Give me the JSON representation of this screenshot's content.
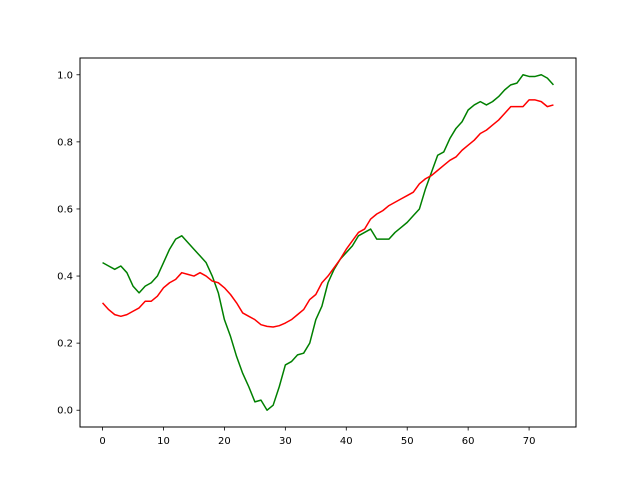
{
  "chart_data": {
    "type": "line",
    "title": "",
    "xlabel": "",
    "ylabel": "",
    "xlim": [
      -3.7,
      77.7
    ],
    "ylim": [
      -0.05,
      1.05
    ],
    "xticks": [
      0,
      10,
      20,
      30,
      40,
      50,
      60,
      70
    ],
    "yticks": [
      0.0,
      0.2,
      0.4,
      0.6,
      0.8,
      1.0
    ],
    "xtick_labels": [
      "0",
      "10",
      "20",
      "30",
      "40",
      "50",
      "60",
      "70"
    ],
    "ytick_labels": [
      "0.0",
      "0.2",
      "0.4",
      "0.6",
      "0.8",
      "1.0"
    ],
    "grid": false,
    "legend": "none",
    "x": [
      0,
      1,
      2,
      3,
      4,
      5,
      6,
      7,
      8,
      9,
      10,
      11,
      12,
      13,
      14,
      15,
      16,
      17,
      18,
      19,
      20,
      21,
      22,
      23,
      24,
      25,
      26,
      27,
      28,
      29,
      30,
      31,
      32,
      33,
      34,
      35,
      36,
      37,
      38,
      39,
      40,
      41,
      42,
      43,
      44,
      45,
      46,
      47,
      48,
      49,
      50,
      51,
      52,
      53,
      54,
      55,
      56,
      57,
      58,
      59,
      60,
      61,
      62,
      63,
      64,
      65,
      66,
      67,
      68,
      69,
      70,
      71,
      72,
      73,
      74
    ],
    "series": [
      {
        "color": "#008000",
        "values": [
          0.44,
          0.43,
          0.42,
          0.43,
          0.41,
          0.37,
          0.35,
          0.37,
          0.38,
          0.4,
          0.44,
          0.48,
          0.51,
          0.52,
          0.5,
          0.48,
          0.46,
          0.44,
          0.4,
          0.35,
          0.27,
          0.22,
          0.16,
          0.11,
          0.07,
          0.025,
          0.03,
          0.0,
          0.015,
          0.07,
          0.135,
          0.145,
          0.165,
          0.17,
          0.2,
          0.27,
          0.31,
          0.38,
          0.42,
          0.45,
          0.47,
          0.49,
          0.52,
          0.53,
          0.54,
          0.51,
          0.51,
          0.51,
          0.53,
          0.545,
          0.56,
          0.58,
          0.6,
          0.66,
          0.71,
          0.76,
          0.77,
          0.81,
          0.84,
          0.86,
          0.895,
          0.91,
          0.92,
          0.91,
          0.92,
          0.935,
          0.955,
          0.97,
          0.975,
          1.0,
          0.995,
          0.995,
          1.0,
          0.99,
          0.97
        ]
      },
      {
        "color": "#ff0000",
        "values": [
          0.32,
          0.3,
          0.285,
          0.28,
          0.285,
          0.295,
          0.305,
          0.325,
          0.325,
          0.34,
          0.365,
          0.38,
          0.39,
          0.41,
          0.405,
          0.4,
          0.41,
          0.4,
          0.385,
          0.38,
          0.365,
          0.345,
          0.32,
          0.29,
          0.28,
          0.27,
          0.255,
          0.25,
          0.248,
          0.252,
          0.26,
          0.27,
          0.285,
          0.3,
          0.33,
          0.345,
          0.38,
          0.4,
          0.425,
          0.45,
          0.48,
          0.505,
          0.53,
          0.54,
          0.57,
          0.585,
          0.595,
          0.61,
          0.62,
          0.63,
          0.64,
          0.65,
          0.675,
          0.69,
          0.7,
          0.715,
          0.73,
          0.745,
          0.755,
          0.775,
          0.79,
          0.805,
          0.825,
          0.835,
          0.85,
          0.865,
          0.885,
          0.905,
          0.905,
          0.905,
          0.925,
          0.925,
          0.92,
          0.905,
          0.91
        ]
      }
    ]
  }
}
